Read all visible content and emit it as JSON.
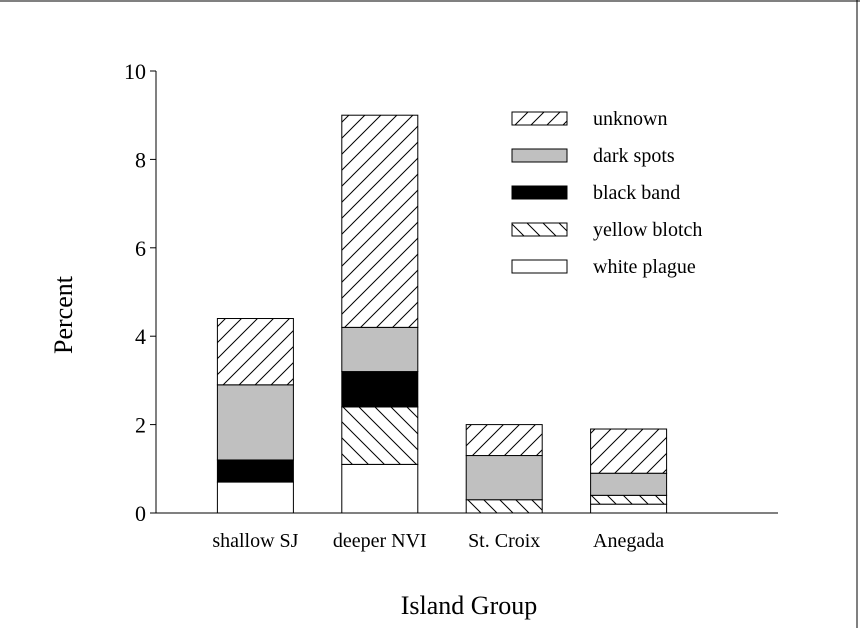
{
  "chart_data": {
    "type": "bar",
    "stacked": true,
    "title": "",
    "xlabel": "Island Group",
    "ylabel": "Percent",
    "ylim": [
      0,
      10
    ],
    "yticks": [
      "0",
      "2",
      "4",
      "6",
      "8",
      "10"
    ],
    "categories": [
      "shallow SJ",
      "deeper NVI",
      "St. Croix",
      "Anegada"
    ],
    "series": [
      {
        "name": "white plague",
        "pattern": "solid",
        "fill": "#ffffff",
        "values": [
          0.7,
          1.1,
          0.0,
          0.2
        ]
      },
      {
        "name": "yellow blotch",
        "pattern": "hatch-back",
        "fill": "#ffffff",
        "values": [
          0.0,
          1.3,
          0.3,
          0.2
        ]
      },
      {
        "name": "black band",
        "pattern": "solid",
        "fill": "#000000",
        "values": [
          0.5,
          0.8,
          0.0,
          0.0
        ]
      },
      {
        "name": "dark spots",
        "pattern": "solid",
        "fill": "#c0c0c0",
        "values": [
          1.7,
          1.0,
          1.0,
          0.5
        ]
      },
      {
        "name": "unknown",
        "pattern": "hatch-forward",
        "fill": "#ffffff",
        "values": [
          1.5,
          4.8,
          0.7,
          1.0
        ]
      }
    ],
    "legend": {
      "position": "top-right",
      "order": [
        "unknown",
        "dark spots",
        "black band",
        "yellow blotch",
        "white plague"
      ]
    },
    "grid": false
  }
}
